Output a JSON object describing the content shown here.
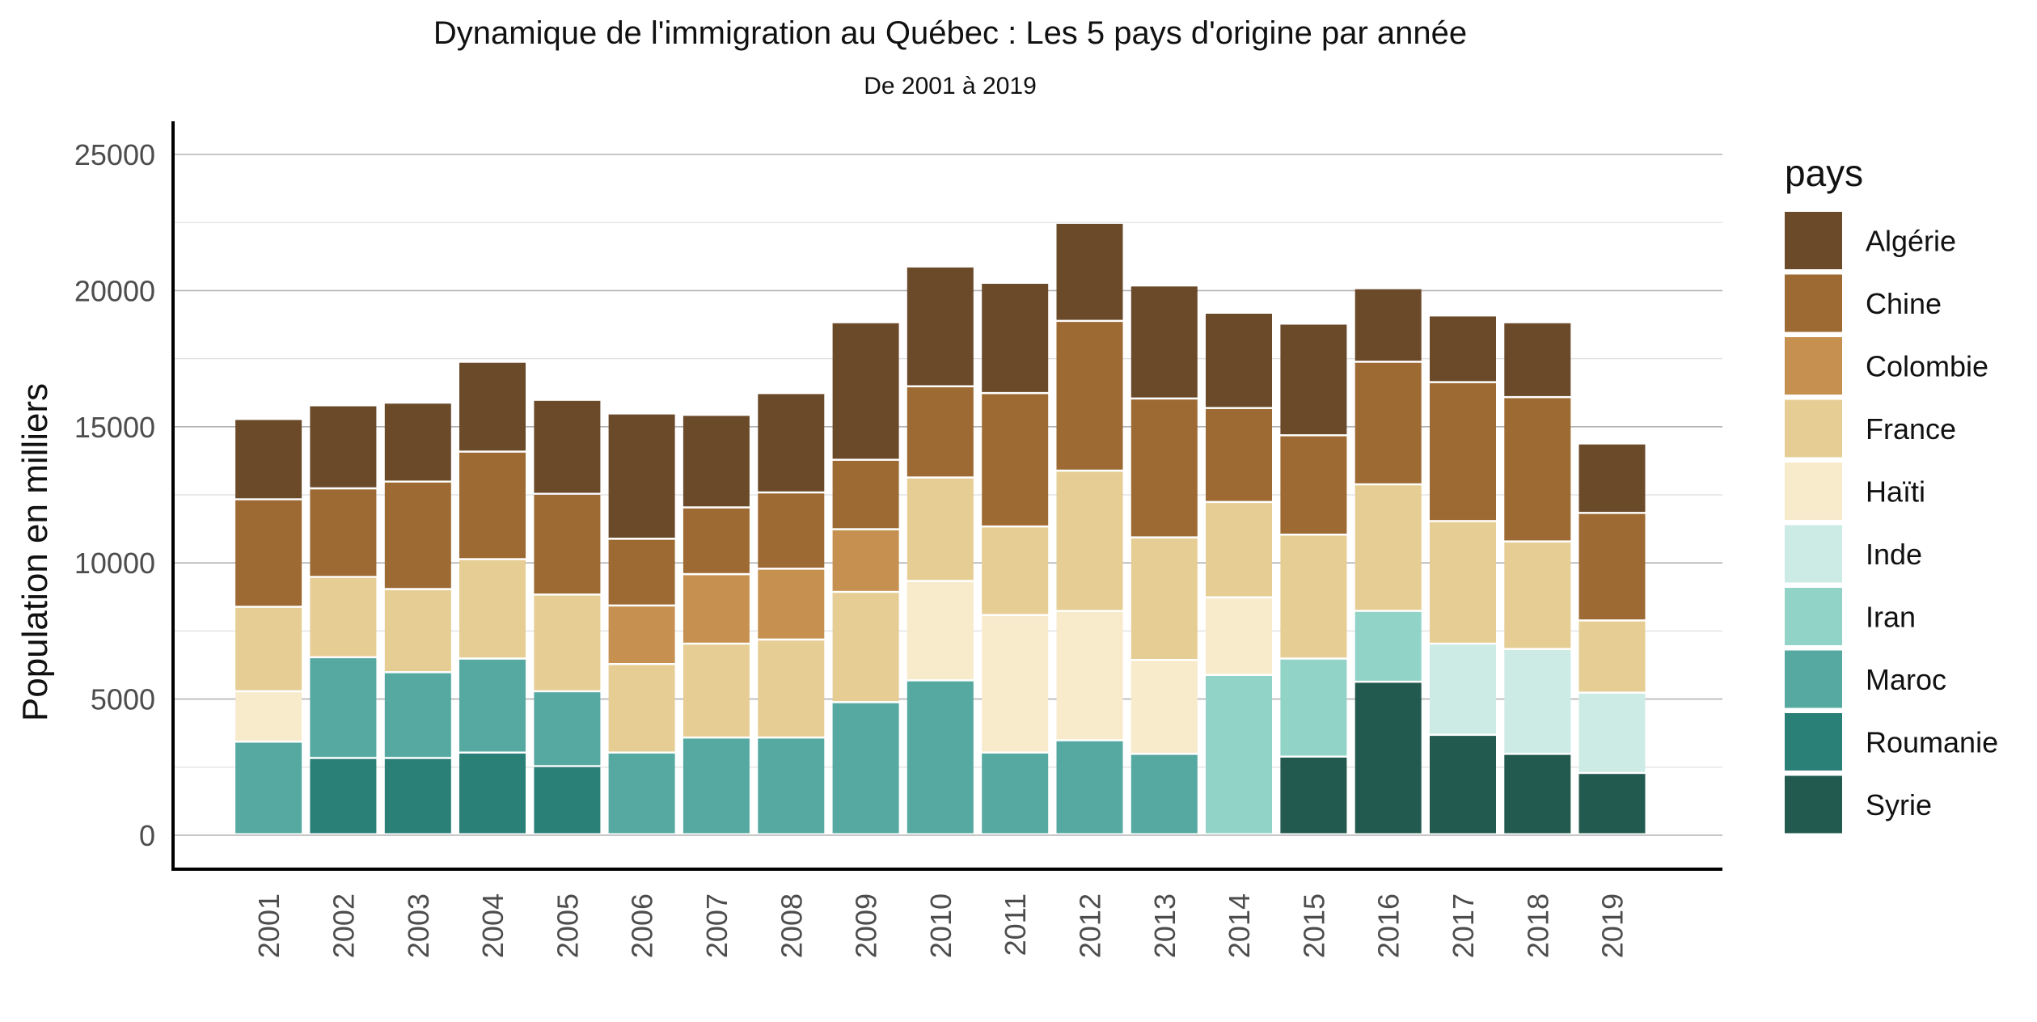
{
  "chart_data": {
    "type": "bar",
    "stacked": true,
    "title": "Dynamique de l'immigration au Québec : Les 5 pays d'origine par année",
    "subtitle": "De 2001 à 2019",
    "xlabel": "",
    "ylabel": "Population en milliers",
    "ylim": [
      0,
      26000
    ],
    "yticks": [
      0,
      5000,
      10000,
      15000,
      20000,
      25000
    ],
    "grid": true,
    "legend_title": "pays",
    "legend_position": "right",
    "categories": [
      "2001",
      "2002",
      "2003",
      "2004",
      "2005",
      "2006",
      "2007",
      "2008",
      "2009",
      "2010",
      "2011",
      "2012",
      "2013",
      "2014",
      "2015",
      "2016",
      "2017",
      "2018",
      "2019"
    ],
    "legend": [
      {
        "name": "Algérie",
        "color": "#6b4a2a"
      },
      {
        "name": "Chine",
        "color": "#9e6a33"
      },
      {
        "name": "Colombie",
        "color": "#c69150"
      },
      {
        "name": "France",
        "color": "#e6cd94"
      },
      {
        "name": "Haïti",
        "color": "#f7ebcc"
      },
      {
        "name": "Inde",
        "color": "#cdebe5"
      },
      {
        "name": "Iran",
        "color": "#92d3c7"
      },
      {
        "name": "Maroc",
        "color": "#55a9a1"
      },
      {
        "name": "Roumanie",
        "color": "#2a7f77"
      },
      {
        "name": "Syrie",
        "color": "#235a4f"
      }
    ],
    "stack_order": [
      "Syrie",
      "Roumanie",
      "Maroc",
      "Iran",
      "Inde",
      "Haïti",
      "France",
      "Colombie",
      "Chine",
      "Algérie"
    ],
    "series": [
      {
        "name": "Algérie",
        "values": [
          2950,
          3050,
          2900,
          3300,
          3450,
          4600,
          3400,
          3650,
          5050,
          4400,
          4050,
          3600,
          4150,
          3500,
          4100,
          2700,
          2450,
          2750,
          2550
        ]
      },
      {
        "name": "Chine",
        "values": [
          3950,
          3250,
          3950,
          3950,
          3700,
          2450,
          2450,
          2800,
          2550,
          3350,
          4900,
          5500,
          5100,
          3450,
          3650,
          4500,
          5100,
          5300,
          3950
        ]
      },
      {
        "name": "Colombie",
        "values": [
          null,
          null,
          null,
          null,
          null,
          2150,
          2550,
          2600,
          2300,
          null,
          null,
          null,
          null,
          null,
          null,
          null,
          null,
          null,
          null
        ]
      },
      {
        "name": "France",
        "values": [
          3100,
          2950,
          3050,
          3650,
          3550,
          3250,
          3450,
          3600,
          4050,
          3800,
          3250,
          5150,
          4500,
          3500,
          4550,
          4650,
          4500,
          3950,
          2650
        ]
      },
      {
        "name": "Haïti",
        "values": [
          1850,
          null,
          null,
          null,
          null,
          null,
          null,
          null,
          null,
          3650,
          5050,
          4750,
          3450,
          2850,
          null,
          null,
          null,
          null,
          null
        ]
      },
      {
        "name": "Inde",
        "values": [
          null,
          null,
          null,
          null,
          null,
          null,
          null,
          null,
          null,
          null,
          null,
          null,
          null,
          null,
          null,
          null,
          3350,
          3850,
          2950
        ]
      },
      {
        "name": "Iran",
        "values": [
          null,
          null,
          null,
          null,
          null,
          null,
          null,
          null,
          null,
          null,
          null,
          null,
          null,
          5850,
          3600,
          2600,
          null,
          null,
          null
        ]
      },
      {
        "name": "Maroc",
        "values": [
          3400,
          3700,
          3150,
          3450,
          2750,
          3000,
          3550,
          3550,
          4850,
          5650,
          3000,
          3450,
          2950,
          null,
          null,
          null,
          null,
          null,
          null
        ]
      },
      {
        "name": "Roumanie",
        "values": [
          null,
          2800,
          2800,
          3000,
          2500,
          null,
          null,
          null,
          null,
          null,
          null,
          null,
          null,
          null,
          null,
          null,
          null,
          null,
          null
        ]
      },
      {
        "name": "Syrie",
        "values": [
          null,
          null,
          null,
          null,
          null,
          null,
          null,
          null,
          null,
          null,
          null,
          null,
          null,
          null,
          2850,
          5600,
          3650,
          2950,
          2250
        ]
      }
    ]
  }
}
